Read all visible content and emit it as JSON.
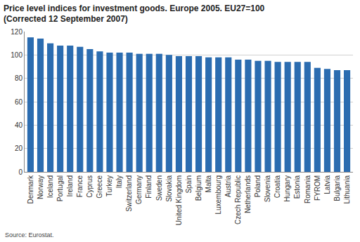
{
  "chart_data": {
    "type": "bar",
    "title": "Price level indices for investment goods. Europe 2005. EU27=100\n(Corrected 12 September 2007)",
    "source": "Source: Eurostat.",
    "categories": [
      "Denmark",
      "Norway",
      "Iceland",
      "Portugal",
      "Ireland",
      "France",
      "Cyprus",
      "Greece",
      "Turkey",
      "Italy",
      "Switzerland",
      "Germany",
      "Finland",
      "Sweden",
      "Slovakia",
      "United Kingdom",
      "Spain",
      "Belgium",
      "Malta",
      "Luxembourg",
      "Austria",
      "Czech Republic",
      "Netherlands",
      "Poland",
      "Slovenia",
      "Croatia",
      "Hungary",
      "Estonia",
      "Romania",
      "FYROM",
      "Latvia",
      "Bulgaria",
      "Lithuania"
    ],
    "values": [
      115,
      114,
      110,
      108,
      108,
      107,
      105,
      103,
      102,
      102,
      102,
      101,
      101,
      101,
      100,
      99,
      99,
      99,
      98,
      98,
      98,
      96,
      96,
      95,
      95,
      94,
      94,
      94,
      94,
      89,
      88,
      87,
      87
    ],
    "color": "#2b6cb0",
    "ylim": [
      0,
      120
    ],
    "yticks": [
      0,
      20,
      40,
      60,
      80,
      100,
      120
    ],
    "grid": true
  }
}
